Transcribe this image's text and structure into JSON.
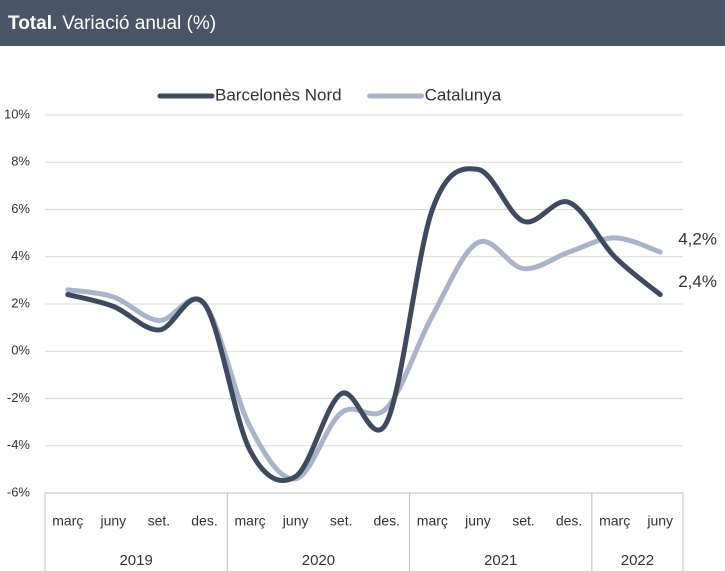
{
  "chart_data": {
    "type": "line",
    "title_bold": "Total.",
    "title": "Variació anual (%)",
    "categories": [
      "març",
      "juny",
      "set.",
      "des.",
      "març",
      "juny",
      "set.",
      "des.",
      "març",
      "juny",
      "set.",
      "des.",
      "març",
      "juny"
    ],
    "groups": [
      "2019",
      "2020",
      "2021",
      "2022"
    ],
    "group_sizes": [
      4,
      4,
      4,
      2
    ],
    "series": [
      {
        "name": "Barcelonès Nord",
        "color": "#3e4a5e",
        "values": [
          2.4,
          1.9,
          0.9,
          2.0,
          -4.2,
          -5.3,
          -1.8,
          -3.0,
          6.0,
          7.7,
          5.5,
          6.3,
          4.0,
          2.4
        ],
        "value_labels": [
          null,
          null,
          null,
          null,
          null,
          null,
          null,
          null,
          null,
          null,
          null,
          null,
          null,
          "2,4%"
        ]
      },
      {
        "name": "Catalunya",
        "color": "#aab4c8",
        "values": [
          2.6,
          2.3,
          1.3,
          2.0,
          -3.2,
          -5.4,
          -2.6,
          -2.4,
          1.5,
          4.6,
          3.5,
          4.2,
          4.8,
          4.2
        ],
        "value_labels": [
          null,
          null,
          null,
          null,
          null,
          null,
          null,
          null,
          null,
          null,
          null,
          null,
          null,
          "4,2%"
        ]
      }
    ],
    "ylim": [
      -6,
      10
    ],
    "yticks": [
      {
        "value": -6,
        "label": "-6%"
      },
      {
        "value": -4,
        "label": "-4%"
      },
      {
        "value": -2,
        "label": "-2%"
      },
      {
        "value": 0,
        "label": "0%"
      },
      {
        "value": 2,
        "label": "2%"
      },
      {
        "value": 4,
        "label": "4%"
      },
      {
        "value": 6,
        "label": "6%"
      },
      {
        "value": 8,
        "label": "8%"
      },
      {
        "value": 10,
        "label": "10%"
      }
    ],
    "grid": true,
    "legend": "top"
  }
}
